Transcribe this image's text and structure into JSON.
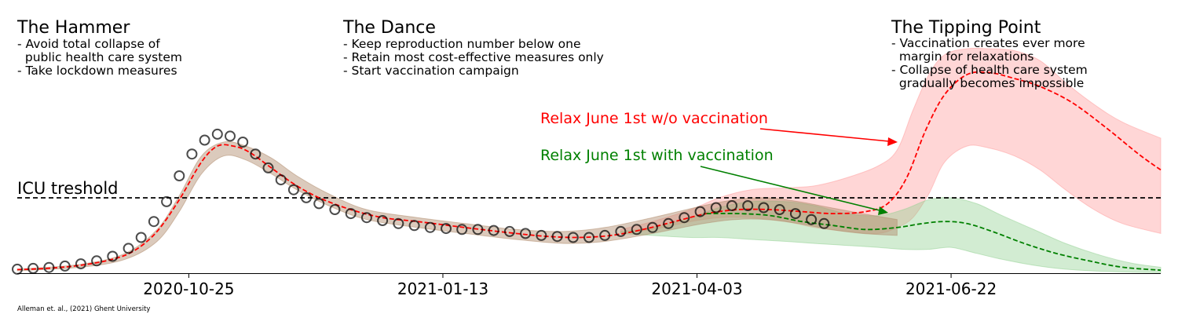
{
  "chart_data": {
    "type": "line",
    "colors": {
      "observed_marker": "#000000",
      "model_fit": "#ff0000",
      "no_vaccination": "#ff0000",
      "with_vaccination": "#008000",
      "band_red": "#ff9999",
      "band_green": "#8fcf8f",
      "band_brown": "#b08a6a",
      "icu_line": "#000000"
    },
    "x_ticks": [
      "2020-10-25",
      "2021-01-13",
      "2021-04-03",
      "2021-06-22"
    ],
    "xlim": [
      "2020-09-01",
      "2021-08-27"
    ],
    "ylim": [
      0,
      1
    ],
    "y_axis_visible": false,
    "grid": false,
    "phases": [
      {
        "title": "The Hammer",
        "lines": [
          "- Avoid total collapse of",
          "  public health care system",
          "- Take lockdown measures"
        ]
      },
      {
        "title": "The Dance",
        "lines": [
          "- Keep reproduction number below one",
          "- Retain most cost-effective measures only",
          "- Start vaccination campaign"
        ]
      },
      {
        "title": "The Tipping Point",
        "lines": [
          "- Vaccination creates ever more",
          "  margin for relaxations",
          "- Collapse of health care system",
          "  gradually becomes impossible"
        ]
      }
    ],
    "icu_threshold": {
      "label": "ICU treshold",
      "value": 0.33
    },
    "annotations": [
      {
        "text": "Relax June 1st w/o vaccination",
        "color": "#ff0000",
        "points_to": "no-vaccination scenario"
      },
      {
        "text": "Relax June 1st with vaccination",
        "color": "#008000",
        "points_to": "vaccination scenario"
      }
    ],
    "credit": "Alleman et. al., (2021) Ghent University",
    "observed": [
      [
        "2020-09-01",
        0.02
      ],
      [
        "2020-09-06",
        0.024
      ],
      [
        "2020-09-11",
        0.029
      ],
      [
        "2020-09-16",
        0.036
      ],
      [
        "2020-09-21",
        0.047
      ],
      [
        "2020-09-26",
        0.062
      ],
      [
        "2020-10-01",
        0.085
      ],
      [
        "2020-10-06",
        0.125
      ],
      [
        "2020-10-10",
        0.18
      ],
      [
        "2020-10-14",
        0.26
      ],
      [
        "2020-10-18",
        0.36
      ],
      [
        "2020-10-22",
        0.49
      ],
      [
        "2020-10-26",
        0.6
      ],
      [
        "2020-10-30",
        0.67
      ],
      [
        "2020-11-03",
        0.7
      ],
      [
        "2020-11-07",
        0.69
      ],
      [
        "2020-11-11",
        0.66
      ],
      [
        "2020-11-15",
        0.6
      ],
      [
        "2020-11-19",
        0.53
      ],
      [
        "2020-11-23",
        0.47
      ],
      [
        "2020-11-27",
        0.42
      ],
      [
        "2020-12-01",
        0.38
      ],
      [
        "2020-12-05",
        0.35
      ],
      [
        "2020-12-10",
        0.32
      ],
      [
        "2020-12-15",
        0.3
      ],
      [
        "2020-12-20",
        0.28
      ],
      [
        "2020-12-25",
        0.265
      ],
      [
        "2020-12-30",
        0.25
      ],
      [
        "2021-01-04",
        0.24
      ],
      [
        "2021-01-09",
        0.23
      ],
      [
        "2021-01-14",
        0.225
      ],
      [
        "2021-01-19",
        0.22
      ],
      [
        "2021-01-24",
        0.22
      ],
      [
        "2021-01-29",
        0.215
      ],
      [
        "2021-02-03",
        0.21
      ],
      [
        "2021-02-08",
        0.2
      ],
      [
        "2021-02-13",
        0.19
      ],
      [
        "2021-02-18",
        0.185
      ],
      [
        "2021-02-23",
        0.18
      ],
      [
        "2021-02-28",
        0.18
      ],
      [
        "2021-03-05",
        0.19
      ],
      [
        "2021-03-10",
        0.21
      ],
      [
        "2021-03-15",
        0.22
      ],
      [
        "2021-03-20",
        0.23
      ],
      [
        "2021-03-25",
        0.25
      ],
      [
        "2021-03-30",
        0.28
      ],
      [
        "2021-04-04",
        0.31
      ],
      [
        "2021-04-09",
        0.33
      ],
      [
        "2021-04-14",
        0.34
      ],
      [
        "2021-04-19",
        0.34
      ],
      [
        "2021-04-24",
        0.33
      ],
      [
        "2021-04-29",
        0.32
      ],
      [
        "2021-05-04",
        0.3
      ],
      [
        "2021-05-09",
        0.27
      ],
      [
        "2021-05-13",
        0.25
      ]
    ],
    "series": [
      {
        "color": "#ff0000",
        "style": "dashed",
        "x": [
          "2020-09-01",
          "2020-09-11",
          "2020-09-21",
          "2020-10-01",
          "2020-10-08",
          "2020-10-15",
          "2020-10-22",
          "2020-10-29",
          "2020-11-03",
          "2020-11-08",
          "2020-11-13",
          "2020-11-20",
          "2020-11-27",
          "2020-12-05",
          "2020-12-15",
          "2020-12-25",
          "2021-01-05",
          "2021-01-15",
          "2021-01-25",
          "2021-02-05",
          "2021-02-15",
          "2021-02-25",
          "2021-03-07",
          "2021-03-17",
          "2021-03-27",
          "2021-04-06",
          "2021-04-16",
          "2021-04-26",
          "2021-05-06",
          "2021-05-16",
          "2021-05-26",
          "2021-06-02",
          "2021-06-08",
          "2021-06-14",
          "2021-06-20",
          "2021-06-27",
          "2021-07-04",
          "2021-07-12",
          "2021-07-20",
          "2021-07-30",
          "2021-08-10",
          "2021-08-20",
          "2021-08-27"
        ],
        "y": [
          0.018,
          0.025,
          0.04,
          0.07,
          0.115,
          0.21,
          0.37,
          0.56,
          0.64,
          0.64,
          0.61,
          0.53,
          0.45,
          0.38,
          0.32,
          0.28,
          0.26,
          0.24,
          0.22,
          0.2,
          0.185,
          0.18,
          0.19,
          0.22,
          0.26,
          0.3,
          0.32,
          0.32,
          0.31,
          0.3,
          0.31,
          0.35,
          0.48,
          0.72,
          0.9,
          1.0,
          1.01,
          0.98,
          0.94,
          0.86,
          0.73,
          0.6,
          0.52
        ]
      },
      {
        "color": "#008000",
        "style": "dashed",
        "x": [
          "2021-04-06",
          "2021-04-16",
          "2021-04-26",
          "2021-05-06",
          "2021-05-16",
          "2021-05-26",
          "2021-06-05",
          "2021-06-13",
          "2021-06-20",
          "2021-06-27",
          "2021-07-05",
          "2021-07-15",
          "2021-07-25",
          "2021-08-05",
          "2021-08-15",
          "2021-08-27"
        ],
        "y": [
          0.3,
          0.3,
          0.29,
          0.26,
          0.24,
          0.22,
          0.23,
          0.25,
          0.26,
          0.25,
          0.21,
          0.15,
          0.1,
          0.06,
          0.03,
          0.015
        ]
      }
    ],
    "bands": [
      {
        "color": "#ff9999",
        "x": [
          "2021-03-10",
          "2021-03-20",
          "2021-04-01",
          "2021-04-10",
          "2021-04-20",
          "2021-05-01",
          "2021-05-10",
          "2021-05-20",
          "2021-05-30",
          "2021-06-05",
          "2021-06-10",
          "2021-06-15",
          "2021-06-20",
          "2021-06-27",
          "2021-07-04",
          "2021-07-12",
          "2021-07-20",
          "2021-07-28",
          "2021-08-06",
          "2021-08-15",
          "2021-08-27"
        ],
        "upper": [
          0.22,
          0.26,
          0.32,
          0.38,
          0.42,
          0.43,
          0.44,
          0.48,
          0.54,
          0.62,
          0.82,
          1.0,
          1.1,
          1.13,
          1.13,
          1.12,
          1.07,
          0.96,
          0.85,
          0.76,
          0.68
        ],
        "lower": [
          0.2,
          0.22,
          0.26,
          0.28,
          0.28,
          0.26,
          0.23,
          0.21,
          0.2,
          0.23,
          0.28,
          0.4,
          0.56,
          0.64,
          0.63,
          0.59,
          0.52,
          0.42,
          0.32,
          0.25,
          0.2
        ]
      },
      {
        "color": "#8fcf8f",
        "x": [
          "2021-03-10",
          "2021-03-20",
          "2021-04-01",
          "2021-04-10",
          "2021-04-20",
          "2021-05-01",
          "2021-05-10",
          "2021-05-20",
          "2021-05-30",
          "2021-06-07",
          "2021-06-15",
          "2021-06-22",
          "2021-06-30",
          "2021-07-08",
          "2021-07-18",
          "2021-07-28",
          "2021-08-08",
          "2021-08-18",
          "2021-08-27"
        ],
        "upper": [
          0.21,
          0.23,
          0.28,
          0.33,
          0.36,
          0.36,
          0.34,
          0.3,
          0.29,
          0.32,
          0.37,
          0.38,
          0.35,
          0.29,
          0.22,
          0.15,
          0.09,
          0.05,
          0.03
        ],
        "lower": [
          0.2,
          0.19,
          0.18,
          0.18,
          0.17,
          0.16,
          0.15,
          0.14,
          0.13,
          0.12,
          0.12,
          0.13,
          0.1,
          0.07,
          0.04,
          0.02,
          0.01,
          0.005,
          0.003
        ]
      },
      {
        "color": "#b08a6a",
        "x": [
          "2020-09-01",
          "2020-09-21",
          "2020-10-05",
          "2020-10-15",
          "2020-10-22",
          "2020-10-29",
          "2020-11-05",
          "2020-11-12",
          "2020-11-20",
          "2020-11-28",
          "2020-12-08",
          "2020-12-20",
          "2021-01-05",
          "2021-01-20",
          "2021-02-05",
          "2021-02-20",
          "2021-03-05",
          "2021-03-20",
          "2021-04-05",
          "2021-04-15",
          "2021-04-25",
          "2021-05-05",
          "2021-05-15",
          "2021-05-25",
          "2021-06-05"
        ],
        "upper": [
          0.02,
          0.045,
          0.1,
          0.22,
          0.39,
          0.59,
          0.66,
          0.64,
          0.58,
          0.49,
          0.4,
          0.32,
          0.28,
          0.25,
          0.22,
          0.21,
          0.23,
          0.28,
          0.34,
          0.37,
          0.38,
          0.36,
          0.33,
          0.3,
          0.27
        ],
        "lower": [
          0.012,
          0.03,
          0.07,
          0.16,
          0.31,
          0.5,
          0.59,
          0.57,
          0.5,
          0.42,
          0.34,
          0.27,
          0.23,
          0.2,
          0.17,
          0.15,
          0.16,
          0.2,
          0.25,
          0.27,
          0.27,
          0.25,
          0.22,
          0.2,
          0.19
        ]
      }
    ]
  }
}
